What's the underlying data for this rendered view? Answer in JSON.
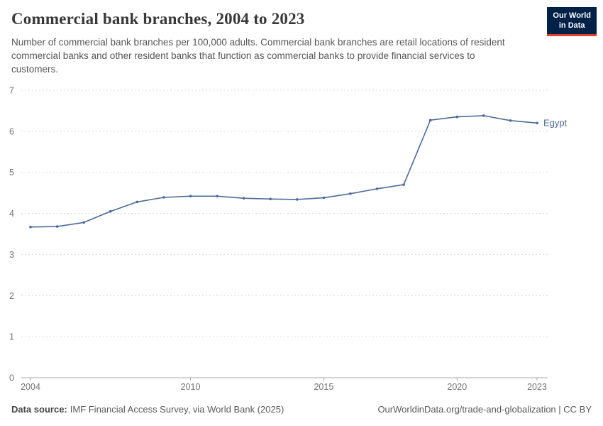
{
  "header": {
    "title": "Commercial bank branches, 2004 to 2023",
    "subtitle": "Number of commercial bank branches per 100,000 adults. Commercial bank branches are retail locations of resident commercial banks and other resident banks that function as commercial banks to provide financial services to customers.",
    "logo": {
      "line1": "Our World",
      "line2": "in Data",
      "bg_color": "#002147",
      "accent_color": "#e0412d"
    }
  },
  "chart_data": {
    "type": "line",
    "title": "Commercial bank branches, 2004 to 2023",
    "x": [
      2004,
      2005,
      2006,
      2007,
      2008,
      2009,
      2010,
      2011,
      2012,
      2013,
      2014,
      2015,
      2016,
      2017,
      2018,
      2019,
      2020,
      2021,
      2022,
      2023
    ],
    "series": [
      {
        "name": "Egypt",
        "color": "#4C6A9C",
        "values": [
          3.67,
          3.68,
          3.78,
          4.05,
          4.28,
          4.39,
          4.42,
          4.42,
          4.37,
          4.35,
          4.34,
          4.38,
          4.48,
          4.6,
          4.7,
          6.27,
          6.35,
          6.38,
          6.26,
          6.2
        ]
      }
    ],
    "xlim": [
      2004,
      2023
    ],
    "ylim": [
      0,
      7
    ],
    "yticks": [
      0,
      1,
      2,
      3,
      4,
      5,
      6,
      7
    ],
    "xticks": [
      2004,
      2010,
      2015,
      2020,
      2023
    ],
    "grid": "horizontal-dashed",
    "legend_position": "end-of-line"
  },
  "footer": {
    "source_label": "Data source:",
    "source_text": "IMF Financial Access Survey, via World Bank (2025)",
    "credit": "OurWorldinData.org/trade-and-globalization | CC BY"
  }
}
